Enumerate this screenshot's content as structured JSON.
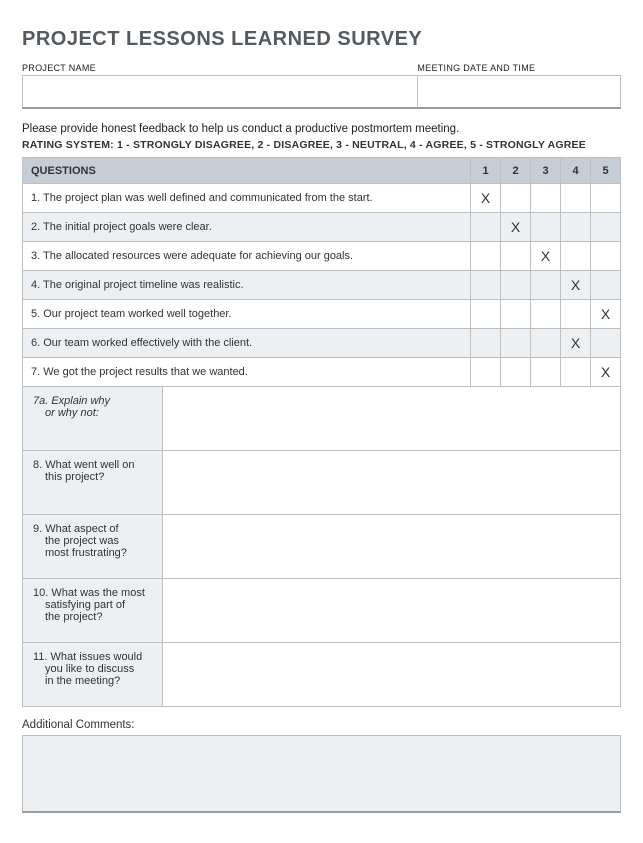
{
  "title": "PROJECT LESSONS LEARNED SURVEY",
  "title_color": "#555a60",
  "title_fontsize": 20,
  "meta": {
    "project_name_label": "PROJECT NAME",
    "project_name_value": "",
    "meeting_label": "MEETING DATE AND TIME",
    "meeting_value": ""
  },
  "instructions": "Please provide honest feedback to help us conduct a productive postmortem meeting.",
  "rating_system": "RATING SYSTEM: 1 - STRONGLY DISAGREE, 2 - DISAGREE, 3 - NEUTRAL, 4 - AGREE, 5 - STRONGLY AGREE",
  "table": {
    "header_q": "QUESTIONS",
    "headers_num": [
      "1",
      "2",
      "3",
      "4",
      "5"
    ],
    "header_bg": "#c6cdd6",
    "row_alt_bg": "#edf0f3",
    "border_color": "#bfbfbf",
    "mark_char": "X",
    "rows": [
      {
        "q": "1. The project plan was well defined and communicated from the start.",
        "rating": 1
      },
      {
        "q": "2. The initial project goals were clear.",
        "rating": 2
      },
      {
        "q": "3. The allocated resources were adequate for achieving our goals.",
        "rating": 3
      },
      {
        "q": "4. The original project timeline was realistic.",
        "rating": 4
      },
      {
        "q": "5. Our project team worked well together.",
        "rating": 5
      },
      {
        "q": "6. Our team worked effectively with the client.",
        "rating": 4
      },
      {
        "q": "7. We got the project results that we wanted.",
        "rating": 5
      }
    ]
  },
  "open_questions": [
    {
      "label_line1": "7a. Explain why",
      "label_line2": "or why not:",
      "italic": true,
      "value": ""
    },
    {
      "label_line1": "8. What went well on",
      "label_line2": "this project?",
      "italic": false,
      "value": ""
    },
    {
      "label_line1": "9. What aspect of",
      "label_line2": "the project was",
      "label_line3": "most frustrating?",
      "italic": false,
      "value": ""
    },
    {
      "label_line1": "10. What was the most",
      "label_line2": "satisfying part of",
      "label_line3": "the project?",
      "italic": false,
      "value": ""
    },
    {
      "label_line1": "11. What issues would",
      "label_line2": "you like to discuss",
      "label_line3": "in the meeting?",
      "italic": false,
      "value": ""
    }
  ],
  "additional": {
    "label": "Additional Comments:",
    "value": "",
    "bg": "#edf0f3"
  }
}
